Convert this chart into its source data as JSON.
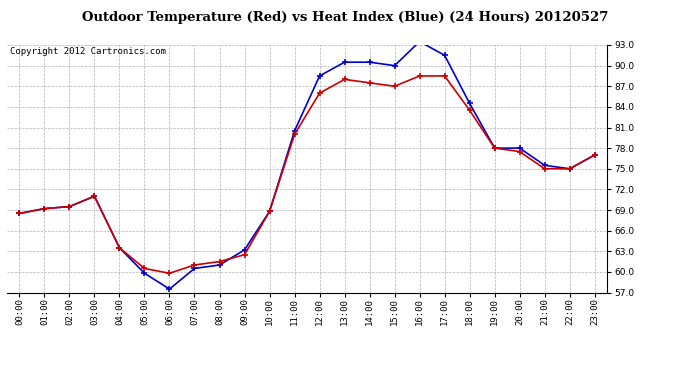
{
  "title": "Outdoor Temperature (Red) vs Heat Index (Blue) (24 Hours) 20120527",
  "copyright": "Copyright 2012 Cartronics.com",
  "hours": [
    "00:00",
    "01:00",
    "02:00",
    "03:00",
    "04:00",
    "05:00",
    "06:00",
    "07:00",
    "08:00",
    "09:00",
    "10:00",
    "11:00",
    "12:00",
    "13:00",
    "14:00",
    "15:00",
    "16:00",
    "17:00",
    "18:00",
    "19:00",
    "20:00",
    "21:00",
    "22:00",
    "23:00"
  ],
  "temp_red": [
    68.5,
    69.2,
    69.5,
    71.0,
    63.5,
    60.5,
    59.8,
    61.0,
    61.5,
    62.5,
    68.8,
    80.0,
    86.0,
    88.0,
    87.5,
    87.0,
    88.5,
    88.5,
    83.5,
    78.0,
    77.5,
    75.0,
    75.0,
    77.0
  ],
  "heat_blue": [
    68.5,
    69.2,
    69.5,
    71.0,
    63.5,
    59.8,
    57.5,
    60.5,
    61.0,
    63.2,
    68.8,
    80.5,
    88.5,
    90.5,
    90.5,
    90.0,
    93.5,
    91.5,
    84.5,
    78.0,
    78.0,
    75.5,
    75.0,
    77.0
  ],
  "ylim_min": 57.0,
  "ylim_max": 93.0,
  "yticks": [
    57.0,
    60.0,
    63.0,
    66.0,
    69.0,
    72.0,
    75.0,
    78.0,
    81.0,
    84.0,
    87.0,
    90.0,
    93.0
  ],
  "red_color": "#cc0000",
  "blue_color": "#0000cc",
  "bg_color": "#ffffff",
  "plot_bg": "#ffffff",
  "grid_color": "#b0b0b0",
  "title_fontsize": 9.5,
  "copyright_fontsize": 6.5,
  "tick_fontsize": 6.5
}
